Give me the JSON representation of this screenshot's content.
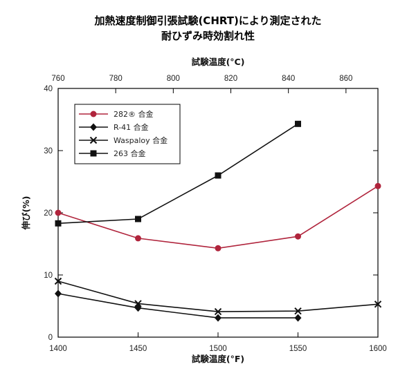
{
  "chart_data": {
    "type": "line",
    "title": "加熱速度制御引張試験(CHRT)により測定された",
    "subtitle": "耐ひずみ時効割れ性",
    "xlabel": "試験温度(°F)",
    "x2label": "試験温度(°C)",
    "ylabel": "伸び(%)",
    "xlim": [
      1400,
      1600
    ],
    "x_ticks": [
      1400,
      1450,
      1500,
      1550,
      1600
    ],
    "x2lim": [
      760,
      871.1
    ],
    "x2_ticks": [
      760,
      780,
      800,
      820,
      840,
      860
    ],
    "ylim": [
      0,
      40
    ],
    "y_ticks": [
      0,
      10,
      20,
      30,
      40
    ],
    "grid": false,
    "legend_position": "top-left",
    "series": [
      {
        "name": "282® 合金",
        "color": "#b0243c",
        "marker": "circle",
        "x": [
          1400,
          1450,
          1500,
          1550,
          1600
        ],
        "y": [
          20.0,
          15.9,
          14.3,
          16.2,
          24.3
        ]
      },
      {
        "name": "R-41 合金",
        "color": "#111111",
        "marker": "diamond",
        "x": [
          1400,
          1450,
          1500,
          1550
        ],
        "y": [
          7.0,
          4.7,
          3.1,
          3.1
        ]
      },
      {
        "name": "Waspaloy 合金",
        "color": "#111111",
        "marker": "x",
        "x": [
          1400,
          1450,
          1500,
          1550,
          1600
        ],
        "y": [
          9.0,
          5.4,
          4.1,
          4.2,
          5.3
        ]
      },
      {
        "name": "263 合金",
        "color": "#111111",
        "marker": "square",
        "x": [
          1400,
          1450,
          1500,
          1550
        ],
        "y": [
          18.3,
          19.0,
          26.0,
          34.3
        ]
      }
    ]
  }
}
